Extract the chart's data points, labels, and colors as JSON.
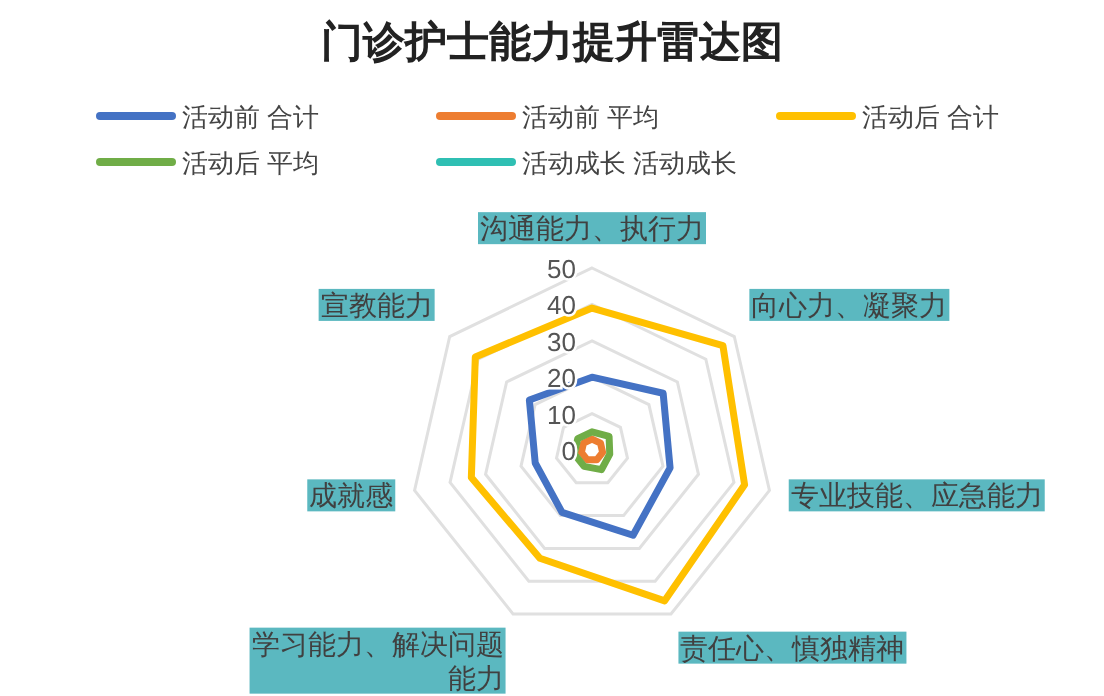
{
  "chart_data": {
    "type": "radar",
    "title": "门诊护士能力提升雷达图",
    "categories": [
      "沟通能力、执行力",
      "向心力、凝聚力",
      "专业技能、应急能力",
      "责任心、慎独精神",
      "学习能力、解决问题能力",
      "成就感",
      "宣教能力"
    ],
    "ylim": [
      0,
      50
    ],
    "yticks": [
      0,
      10,
      20,
      30,
      40,
      50
    ],
    "grid": true,
    "legend": "top",
    "marker": "none",
    "line_style": "solid",
    "series": [
      {
        "name": "活动前 合计",
        "color": "#4472c4",
        "values": [
          20,
          25,
          22,
          26,
          19,
          16,
          22
        ]
      },
      {
        "name": "活动前 平均",
        "color": "#ed7d31",
        "values": [
          3,
          3,
          3,
          3,
          3,
          3,
          3
        ]
      },
      {
        "name": "活动后 合计",
        "color": "#ffc000",
        "values": [
          39,
          46,
          43,
          46,
          33,
          34,
          41
        ]
      },
      {
        "name": "活动后 平均",
        "color": "#70ad47",
        "values": [
          5,
          6,
          5,
          6,
          5,
          5,
          5
        ]
      },
      {
        "name": "活动成长 活动成长",
        "color": "#2fbfb3",
        "values": [
          null,
          null,
          null,
          null,
          null,
          null,
          null
        ]
      }
    ]
  }
}
